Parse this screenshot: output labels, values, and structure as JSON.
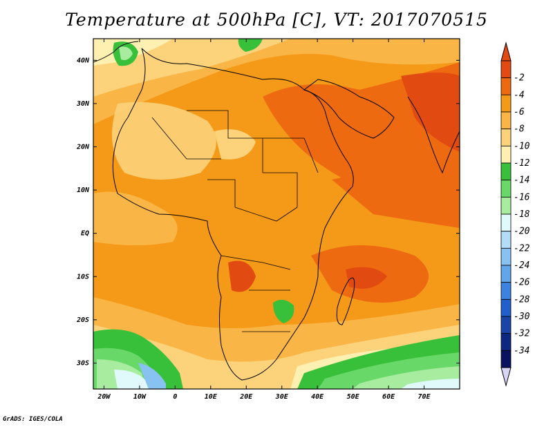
{
  "title": "Temperature at 500hPa [C], VT: 2017070515",
  "credit": "GrADS: IGES/COLA",
  "map": {
    "lon_range": [
      -23,
      80
    ],
    "lat_range": [
      -36,
      45
    ],
    "x_ticks": [
      "20W",
      "10W",
      "0",
      "10E",
      "20E",
      "30E",
      "40E",
      "50E",
      "60E",
      "70E"
    ],
    "x_tick_values": [
      -20,
      -10,
      0,
      10,
      20,
      30,
      40,
      50,
      60,
      70
    ],
    "y_ticks": [
      "40N",
      "30N",
      "20N",
      "10N",
      "EQ",
      "10S",
      "20S",
      "30S"
    ],
    "y_tick_values": [
      40,
      30,
      20,
      10,
      0,
      -10,
      -20,
      -30
    ]
  },
  "colorbar": {
    "labels": [
      "-2",
      "-4",
      "-6",
      "-8",
      "-10",
      "-12",
      "-14",
      "-16",
      "-18",
      "-20",
      "-22",
      "-24",
      "-26",
      "-28",
      "-30",
      "-32",
      "-34"
    ],
    "colors": [
      "#e14a10",
      "#ee6a10",
      "#f59a18",
      "#f9b545",
      "#fcd27a",
      "#fdf0b0",
      "#39c03a",
      "#68d868",
      "#a8eca0",
      "#e0fafc",
      "#b2dcf8",
      "#88c2f0",
      "#62a6ea",
      "#3c82e0",
      "#2160cc",
      "#1a44a8",
      "#0c2880",
      "#0a1260"
    ],
    "top_arrow_color": "#e14a10",
    "bottom_arrow_color": "#d8d4f4"
  }
}
